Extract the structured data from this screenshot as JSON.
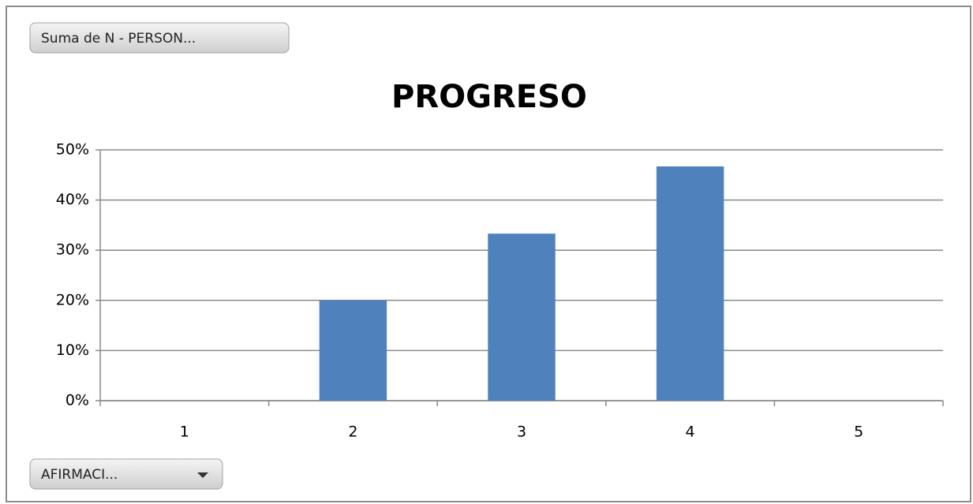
{
  "chart_data": {
    "type": "bar",
    "title": "PROGRESO",
    "value_field_button": "Suma de N - PERSON...",
    "axis_field_button": "AFIRMACI...",
    "categories": [
      "1",
      "2",
      "3",
      "4",
      "5"
    ],
    "values": [
      0,
      20,
      33.3,
      46.7,
      0
    ],
    "color": "#4f81bd",
    "ylim": [
      0,
      50
    ],
    "yticks": [
      {
        "value": 0,
        "label": "0%"
      },
      {
        "value": 10,
        "label": "10%"
      },
      {
        "value": 20,
        "label": "20%"
      },
      {
        "value": 30,
        "label": "30%"
      },
      {
        "value": 40,
        "label": "40%"
      },
      {
        "value": 50,
        "label": "50%"
      }
    ],
    "grid": true
  }
}
